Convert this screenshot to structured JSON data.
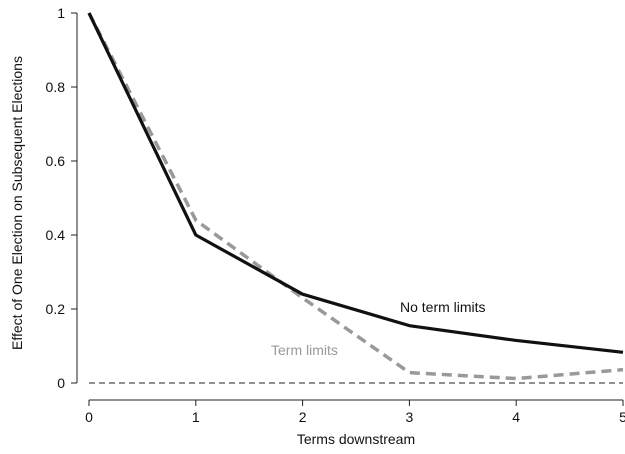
{
  "chart_data": {
    "type": "line",
    "title": "",
    "xlabel": "Terms downstream",
    "ylabel": "Effect of One Election on Subsequent Elections",
    "xlim": [
      0,
      5
    ],
    "ylim": [
      0,
      1
    ],
    "x_ticks": [
      "0",
      "1",
      "2",
      "3",
      "4",
      "5"
    ],
    "y_ticks": [
      "0",
      "0.2",
      "0.4",
      "0.6",
      "0.8",
      "1"
    ],
    "x": [
      0,
      1,
      2,
      3,
      4,
      5
    ],
    "grid": false,
    "legend": "none",
    "reference_line": {
      "y": 0,
      "style": "dashed"
    },
    "series": [
      {
        "name": "No term limits",
        "values": [
          1.0,
          0.4,
          0.24,
          0.155,
          0.115,
          0.083
        ],
        "color": "#111111",
        "style": "solid"
      },
      {
        "name": "Term limits",
        "values": [
          1.0,
          0.44,
          0.23,
          0.028,
          0.012,
          0.036
        ],
        "color": "#999999",
        "style": "dashed"
      }
    ]
  }
}
